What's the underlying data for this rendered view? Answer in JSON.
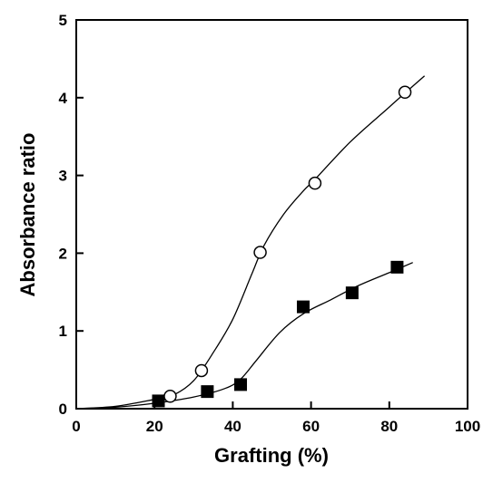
{
  "chart_data": {
    "type": "scatter",
    "xlabel": "Grafting (%)",
    "ylabel": "Absorbance ratio",
    "xlim": [
      0,
      100
    ],
    "ylim": [
      0,
      5
    ],
    "xticks": [
      0,
      20,
      40,
      60,
      80,
      100
    ],
    "yticks": [
      0,
      1,
      2,
      3,
      4,
      5
    ],
    "grid": false,
    "series": [
      {
        "marker": "open-circle",
        "points": [
          [
            24,
            0.16
          ],
          [
            32,
            0.49
          ],
          [
            47,
            2.01
          ],
          [
            61,
            2.9
          ],
          [
            84,
            4.07
          ]
        ],
        "curve": [
          [
            0,
            0
          ],
          [
            10,
            0.03
          ],
          [
            20,
            0.12
          ],
          [
            25,
            0.18
          ],
          [
            30,
            0.36
          ],
          [
            35,
            0.72
          ],
          [
            40,
            1.15
          ],
          [
            45,
            1.75
          ],
          [
            48,
            2.1
          ],
          [
            53,
            2.5
          ],
          [
            58,
            2.8
          ],
          [
            61,
            2.95
          ],
          [
            70,
            3.43
          ],
          [
            80,
            3.88
          ],
          [
            89,
            4.28
          ]
        ]
      },
      {
        "marker": "filled-square",
        "points": [
          [
            21,
            0.1
          ],
          [
            33.5,
            0.22
          ],
          [
            42,
            0.31
          ],
          [
            58,
            1.31
          ],
          [
            70.5,
            1.49
          ],
          [
            82,
            1.82
          ]
        ],
        "curve": [
          [
            0,
            0
          ],
          [
            10,
            0.02
          ],
          [
            20,
            0.07
          ],
          [
            30,
            0.15
          ],
          [
            38,
            0.26
          ],
          [
            42,
            0.38
          ],
          [
            46,
            0.62
          ],
          [
            52,
            0.98
          ],
          [
            58,
            1.22
          ],
          [
            65,
            1.4
          ],
          [
            72,
            1.58
          ],
          [
            80,
            1.75
          ],
          [
            86,
            1.88
          ]
        ]
      }
    ]
  }
}
